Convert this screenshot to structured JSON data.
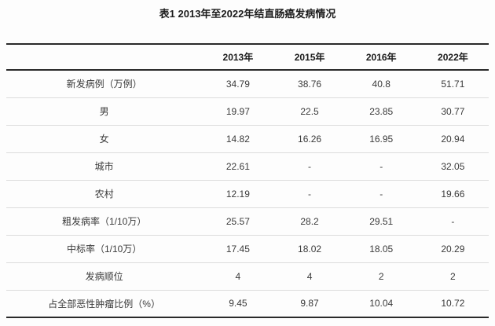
{
  "page": {
    "background": "#fdfdfd",
    "heavy_border_color": "#2a2a2a",
    "light_border_color": "#dcdcdc",
    "title_color": "#1c1c1c",
    "body_text_color": "#3a3a3a"
  },
  "table": {
    "title": "表1 2013年至2022年结直肠癌发病情况",
    "columns": [
      "",
      "2013年",
      "2015年",
      "2016年",
      "2022年"
    ],
    "rows": [
      {
        "label": "新发病例（万例）",
        "values": [
          "34.79",
          "38.76",
          "40.8",
          "51.71"
        ]
      },
      {
        "label": "男",
        "values": [
          "19.97",
          "22.5",
          "23.85",
          "30.77"
        ]
      },
      {
        "label": "女",
        "values": [
          "14.82",
          "16.26",
          "16.95",
          "20.94"
        ]
      },
      {
        "label": "城市",
        "values": [
          "22.61",
          "-",
          "-",
          "32.05"
        ]
      },
      {
        "label": "农村",
        "values": [
          "12.19",
          "-",
          "-",
          "19.66"
        ]
      },
      {
        "label": "粗发病率（1/10万）",
        "values": [
          "25.57",
          "28.2",
          "29.51",
          "-"
        ]
      },
      {
        "label": "中标率（1/10万）",
        "values": [
          "17.45",
          "18.02",
          "18.05",
          "20.29"
        ]
      },
      {
        "label": "发病顺位",
        "values": [
          "4",
          "4",
          "2",
          "2"
        ]
      },
      {
        "label": "占全部恶性肿瘤比例（%）",
        "values": [
          "9.45",
          "9.87",
          "10.04",
          "10.72"
        ]
      }
    ]
  },
  "chart_data": {
    "type": "table",
    "title": "表1 2013年至2022年结直肠癌发病情况",
    "categories": [
      "2013年",
      "2015年",
      "2016年",
      "2022年"
    ],
    "series": [
      {
        "name": "新发病例（万例）",
        "values": [
          34.79,
          38.76,
          40.8,
          51.71
        ]
      },
      {
        "name": "男",
        "values": [
          19.97,
          22.5,
          23.85,
          30.77
        ]
      },
      {
        "name": "女",
        "values": [
          14.82,
          16.26,
          16.95,
          20.94
        ]
      },
      {
        "name": "城市",
        "values": [
          22.61,
          null,
          null,
          32.05
        ]
      },
      {
        "name": "农村",
        "values": [
          12.19,
          null,
          null,
          19.66
        ]
      },
      {
        "name": "粗发病率（1/10万）",
        "values": [
          25.57,
          28.2,
          29.51,
          null
        ]
      },
      {
        "name": "中标率（1/10万）",
        "values": [
          17.45,
          18.02,
          18.05,
          20.29
        ]
      },
      {
        "name": "发病顺位",
        "values": [
          4,
          4,
          2,
          2
        ]
      },
      {
        "name": "占全部恶性肿瘤比例（%）",
        "values": [
          9.45,
          9.87,
          10.04,
          10.72
        ]
      }
    ],
    "missing_value_marker": "-"
  }
}
